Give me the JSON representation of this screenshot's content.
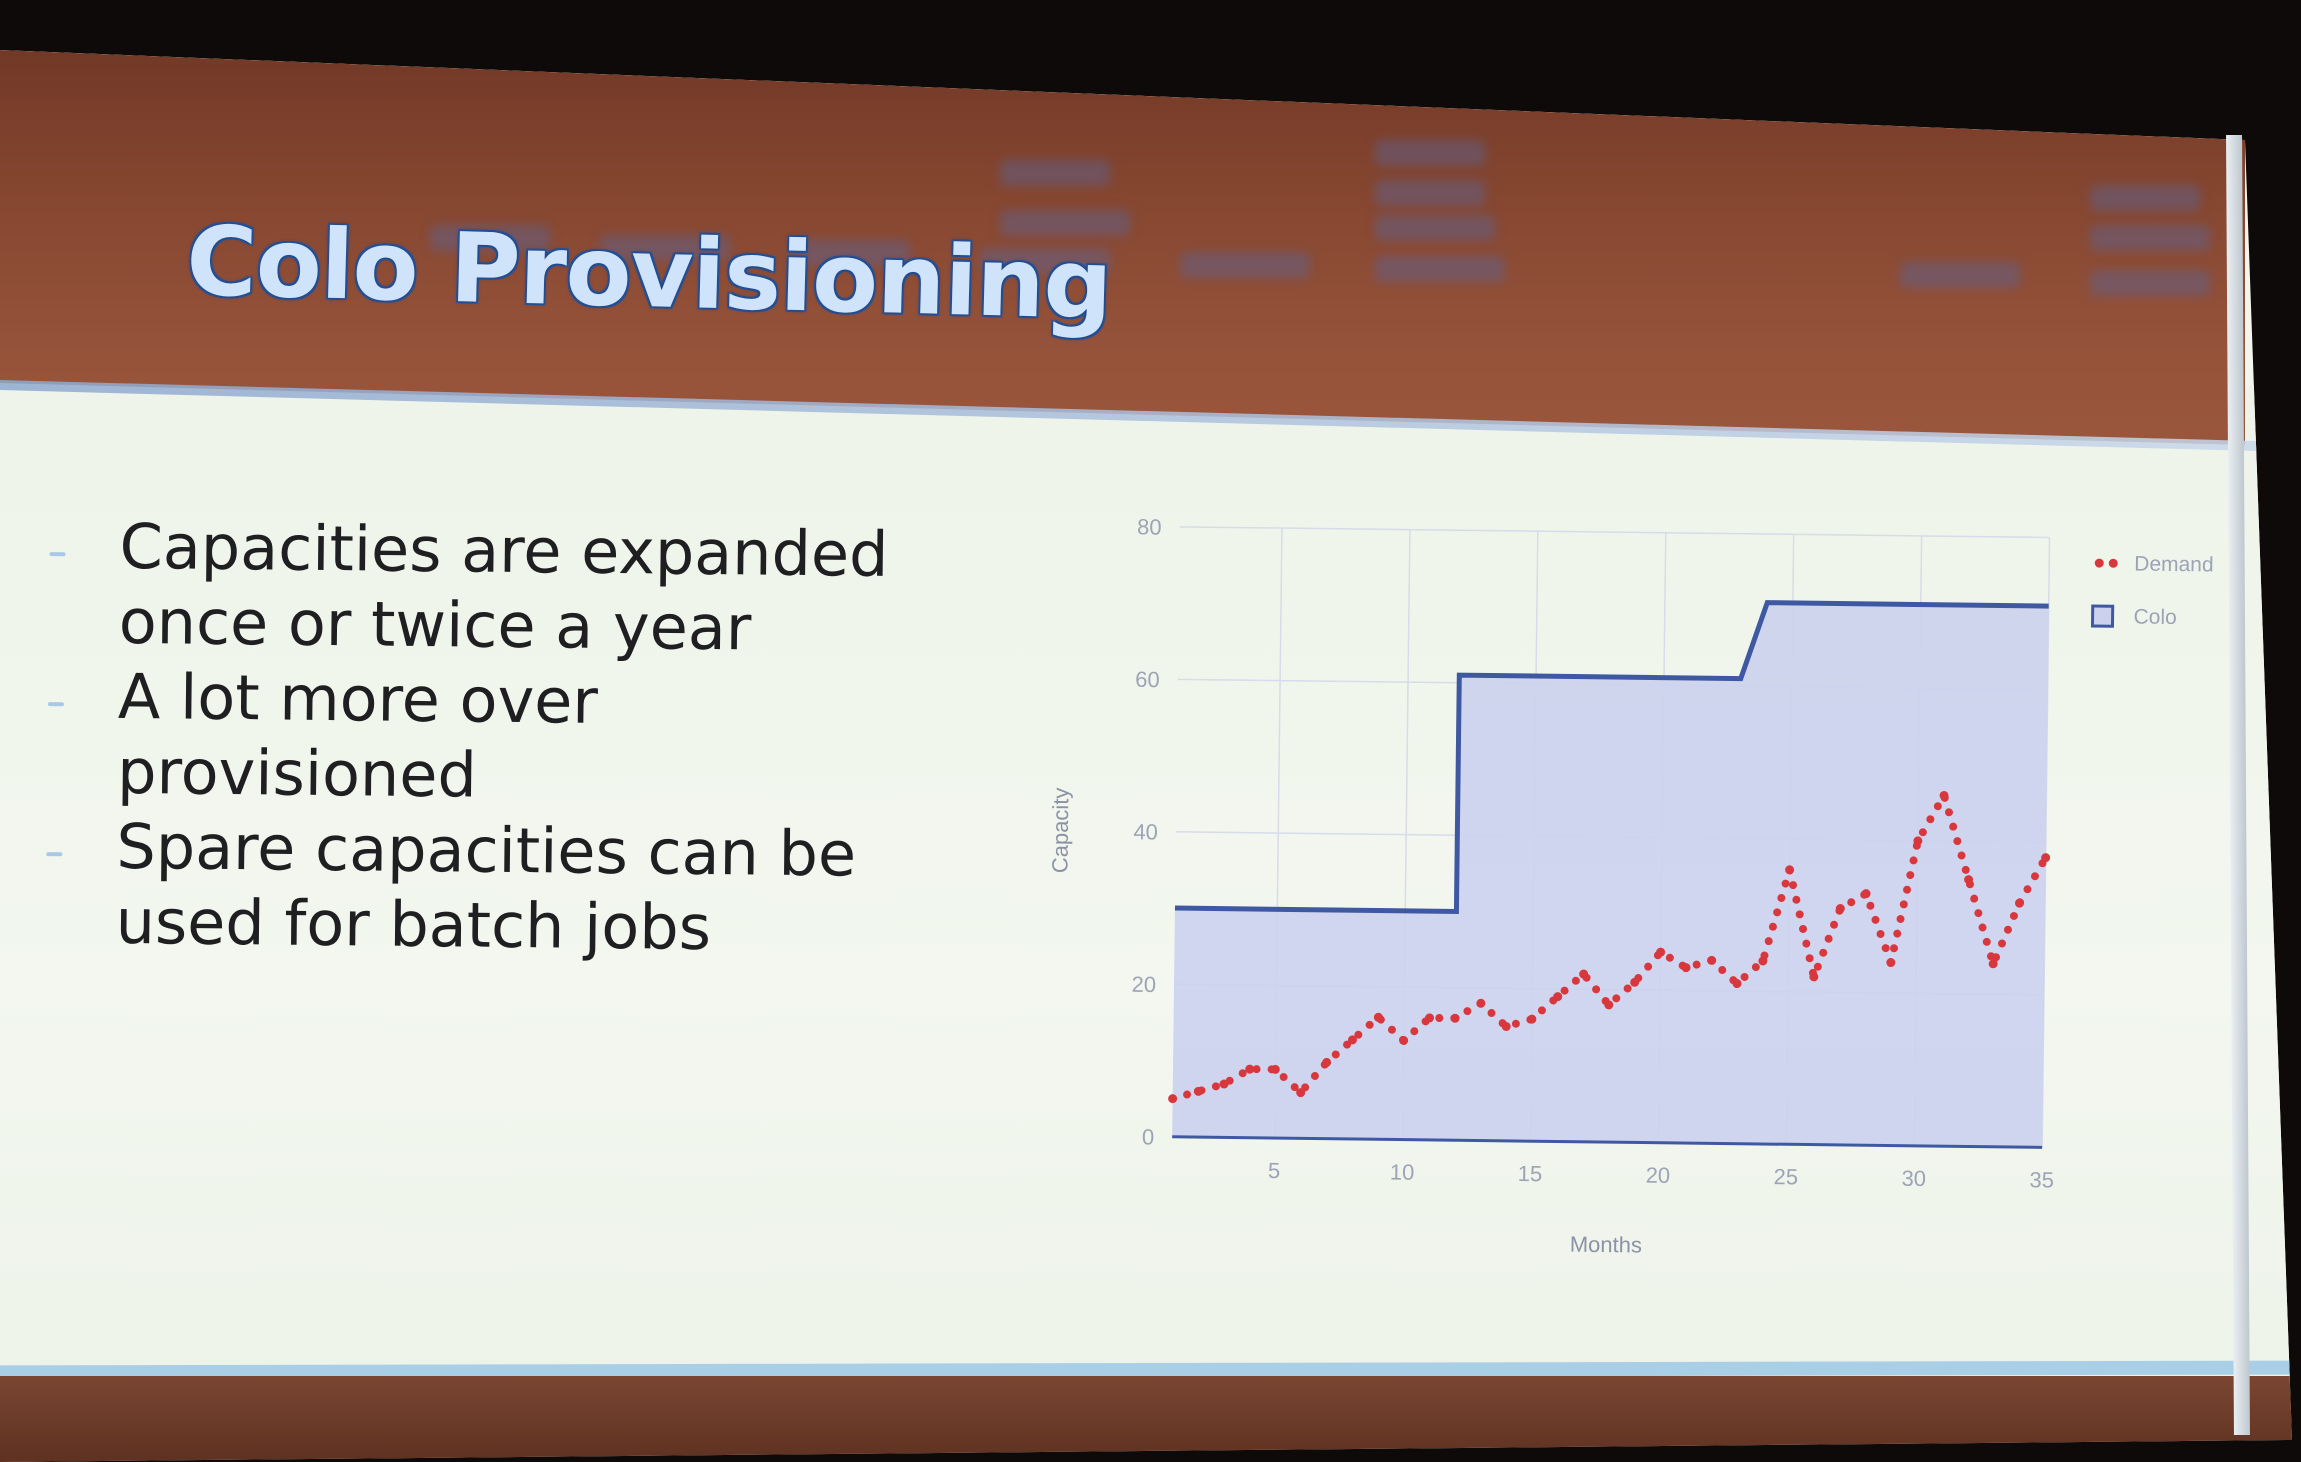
{
  "slide": {
    "title": "Colo Provisioning",
    "bullets": [
      {
        "text": "Capacities are expanded once or twice a year"
      },
      {
        "text": "A lot more over provisioned"
      },
      {
        "text": "Spare capacities can be used for batch jobs"
      }
    ]
  },
  "colors": {
    "title_text": "#cfe4fb",
    "header_band": "#8a4a33",
    "slide_body": "#f2f6ec",
    "colo_fill": "#ccd2ee",
    "colo_line": "#3f58a2",
    "demand_dots": "#d8383d"
  },
  "chart_data": {
    "type": "area",
    "xlabel": "Months",
    "ylabel": "Capacity",
    "xlim": [
      1,
      35
    ],
    "ylim": [
      0,
      80
    ],
    "x_ticks": [
      5,
      10,
      15,
      20,
      25,
      30,
      35
    ],
    "y_ticks": [
      0,
      20,
      40,
      60,
      80
    ],
    "grid": true,
    "legend_position": "top-right",
    "series": [
      {
        "name": "Demand",
        "style": "dotted-line",
        "x": [
          1,
          2,
          3,
          4,
          5,
          6,
          7,
          8,
          9,
          10,
          11,
          12,
          13,
          14,
          15,
          16,
          17,
          18,
          19,
          20,
          21,
          22,
          23,
          24,
          25,
          26,
          27,
          28,
          29,
          30,
          31,
          32,
          33,
          34,
          35
        ],
        "values": [
          5,
          6,
          7,
          9,
          9,
          6,
          10,
          13,
          16,
          13,
          16,
          16,
          18,
          15,
          16,
          19,
          22,
          18,
          21,
          25,
          23,
          24,
          21,
          24,
          36,
          22,
          31,
          33,
          24,
          40,
          46,
          35,
          24,
          32,
          38
        ]
      },
      {
        "name": "Colo",
        "style": "stepped-area",
        "x": [
          1,
          12,
          12,
          23,
          24,
          35
        ],
        "values": [
          30,
          30,
          61,
          61,
          71,
          71
        ]
      }
    ]
  }
}
